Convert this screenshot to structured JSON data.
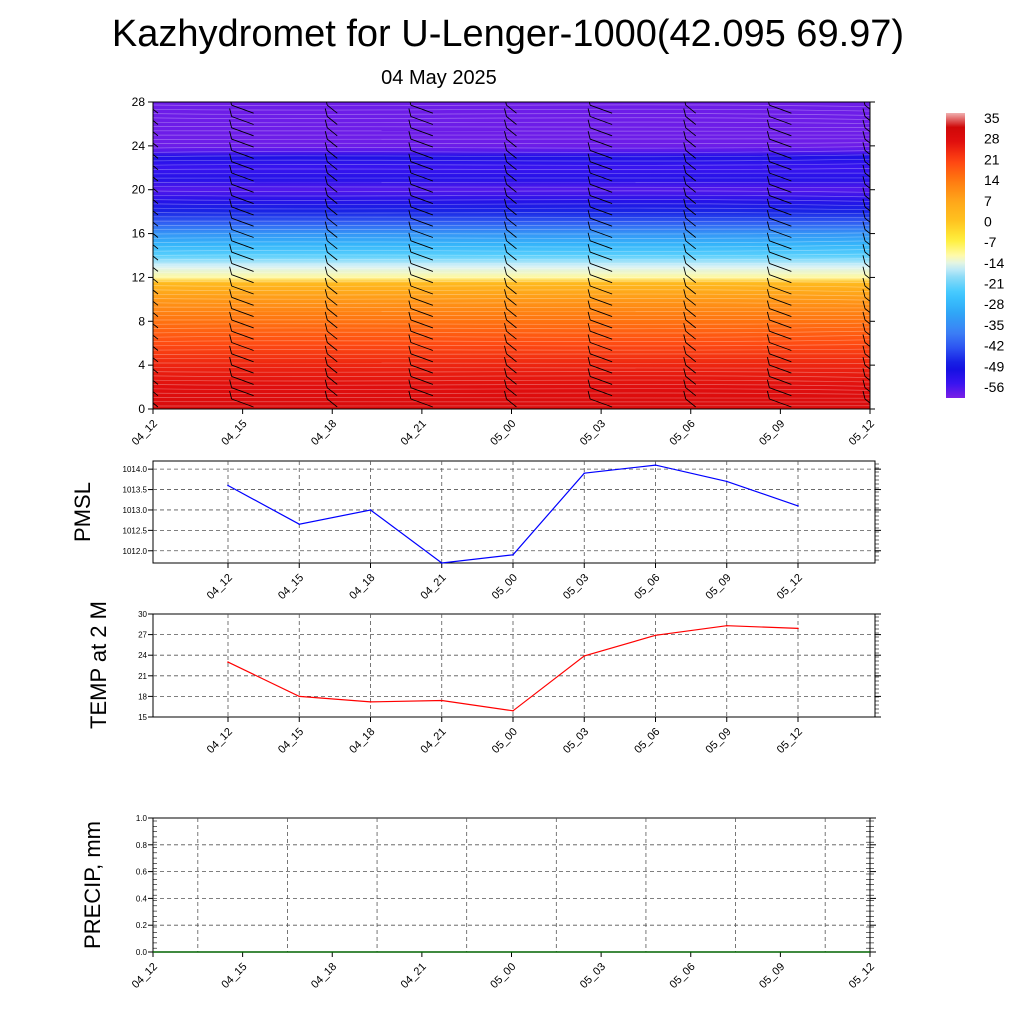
{
  "header": {
    "title": "Kazhydromet for U-Lenger-1000(42.095 69.97)",
    "subtitle": "04 May 2025"
  },
  "chart_data": [
    {
      "type": "heatmap",
      "description": "Vertical cross-section of temperature (color) with wind barbs",
      "x_ticks": [
        "04_12",
        "04_15",
        "04_18",
        "04_21",
        "05_00",
        "05_03",
        "05_06",
        "05_09",
        "05_12"
      ],
      "y_ticks": [
        0,
        4,
        8,
        12,
        16,
        20,
        24,
        28
      ],
      "ylim": [
        0,
        28
      ],
      "colorbar": {
        "labels": [
          35,
          28,
          21,
          14,
          7,
          0,
          -7,
          -14,
          -21,
          -28,
          -35,
          -42,
          -49,
          -56
        ],
        "range": [
          -63,
          38
        ]
      },
      "temperature_profile_by_y": [
        [
          0,
          30
        ],
        [
          2,
          28
        ],
        [
          4,
          25
        ],
        [
          6,
          20
        ],
        [
          8,
          15
        ],
        [
          10,
          9
        ],
        [
          11.5,
          2
        ],
        [
          12,
          -12
        ],
        [
          13,
          -16
        ],
        [
          14,
          -24
        ],
        [
          15,
          -30
        ],
        [
          16,
          -36
        ],
        [
          17,
          -44
        ],
        [
          18,
          -50
        ],
        [
          19,
          -55
        ],
        [
          20,
          -60
        ],
        [
          21,
          -55
        ],
        [
          22,
          -58
        ],
        [
          23,
          -54
        ],
        [
          23.5,
          -60
        ],
        [
          24,
          -62
        ],
        [
          26,
          -62
        ],
        [
          28,
          -62
        ]
      ],
      "barbs": {
        "description": "wind barbs drawn in black at each time column along the vertical axis"
      }
    },
    {
      "type": "line",
      "ylabel": "PMSL",
      "x": [
        "04_12",
        "04_15",
        "04_18",
        "04_21",
        "05_00",
        "05_03",
        "05_06",
        "05_09",
        "05_12"
      ],
      "series": [
        {
          "color": "#0000ff",
          "values": [
            1013.6,
            1012.65,
            1013.0,
            1011.7,
            1011.9,
            1013.9,
            1014.1,
            1013.7,
            1013.1
          ]
        }
      ],
      "y_ticks": [
        "1012.0",
        "1012.5",
        "1013.0",
        "1013.5",
        "1014.0"
      ],
      "ylim": [
        1011.7,
        1014.2
      ],
      "grid": true
    },
    {
      "type": "line",
      "ylabel": "TEMP at 2 M",
      "x": [
        "04_12",
        "04_15",
        "04_18",
        "04_21",
        "05_00",
        "05_03",
        "05_06",
        "05_09",
        "05_12"
      ],
      "series": [
        {
          "color": "#ff0000",
          "values": [
            23.0,
            18.0,
            17.2,
            17.4,
            15.9,
            23.9,
            26.9,
            28.3,
            27.9
          ]
        }
      ],
      "y_ticks": [
        "15",
        "18",
        "21",
        "24",
        "27",
        "30"
      ],
      "ylim": [
        15,
        30
      ],
      "grid": true
    },
    {
      "type": "line",
      "ylabel": "PRECIP, mm",
      "x": [
        "04_12",
        "04_15",
        "04_18",
        "04_21",
        "05_00",
        "05_03",
        "05_06",
        "05_09",
        "05_12"
      ],
      "series": [
        {
          "color": "#006400",
          "values": [
            0,
            0,
            0,
            0,
            0,
            0,
            0,
            0,
            0
          ]
        }
      ],
      "y_ticks": [
        "0.0",
        "0.2",
        "0.4",
        "0.6",
        "0.8",
        "1.0"
      ],
      "ylim": [
        0,
        1
      ],
      "grid": true
    }
  ]
}
